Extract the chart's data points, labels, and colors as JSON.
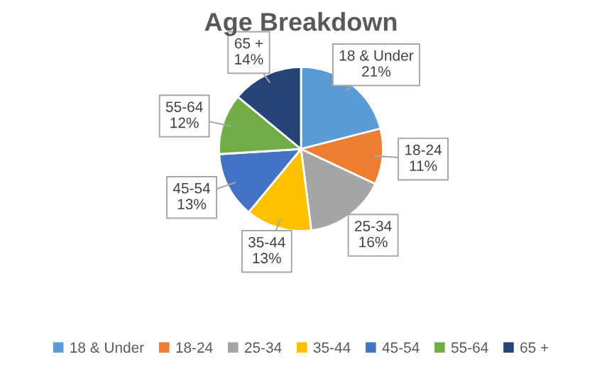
{
  "chart_data": {
    "type": "pie",
    "title": "Age Breakdown",
    "categories": [
      "18 & Under",
      "18-24",
      "25-34",
      "35-44",
      "45-54",
      "55-64",
      "65 +"
    ],
    "values": [
      21,
      11,
      16,
      13,
      13,
      12,
      14
    ],
    "value_labels": [
      "21%",
      "11%",
      "16%",
      "13%",
      "13%",
      "12%",
      "14%"
    ],
    "colors": [
      "#5b9bd5",
      "#ed7d31",
      "#a5a5a5",
      "#ffc000",
      "#4472c4",
      "#70ad47",
      "#264478"
    ],
    "legend": "bottom"
  }
}
